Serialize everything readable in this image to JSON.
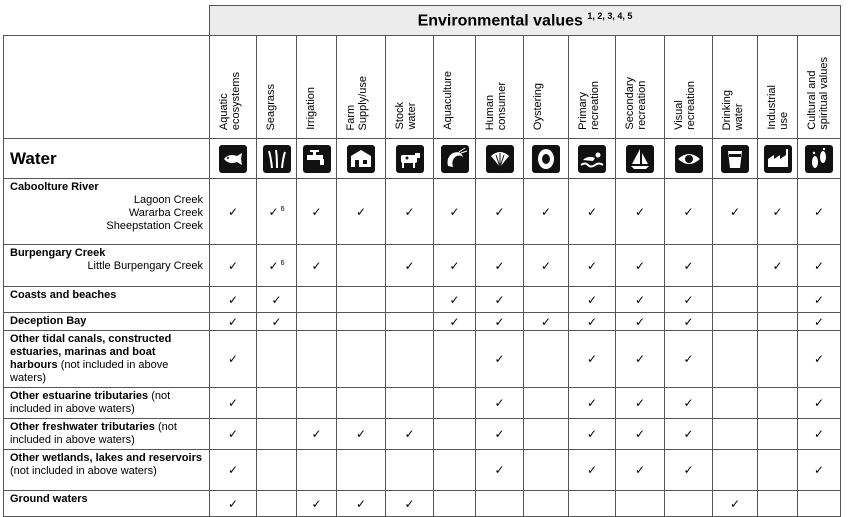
{
  "header": {
    "title": "Environmental values",
    "superscript": "1, 2, 3, 4, 5",
    "water_label": "Water"
  },
  "columns": [
    {
      "label": "Aquatic\necosystems",
      "icon": "fish-icon"
    },
    {
      "label": "Seagrass",
      "icon": "seagrass-icon"
    },
    {
      "label": "Irrigation",
      "icon": "tap-icon"
    },
    {
      "label": "Farm\nSupply/use",
      "icon": "farm-building-icon"
    },
    {
      "label": "Stock\nwater",
      "icon": "cow-icon"
    },
    {
      "label": "Aquaculture",
      "icon": "prawn-icon"
    },
    {
      "label": "Human\nconsumer",
      "icon": "shell-icon"
    },
    {
      "label": "Oystering",
      "icon": "oyster-icon"
    },
    {
      "label": "Primary\nrecreation",
      "icon": "swimmer-icon"
    },
    {
      "label": "Secondary\nrecreation",
      "icon": "sailboat-icon"
    },
    {
      "label": "Visual\nrecreation",
      "icon": "eye-icon"
    },
    {
      "label": "Drinking\nwater",
      "icon": "cup-icon"
    },
    {
      "label": "Industrial\nuse",
      "icon": "factory-icon"
    },
    {
      "label": "Cultural and\nspiritual values",
      "icon": "footprints-icon"
    }
  ],
  "check_mark": "✓",
  "rows": [
    {
      "title": "Caboolture River",
      "note": "",
      "subs": [
        "Lagoon Creek",
        "Wararba Creek",
        "Sheepstation Creek"
      ],
      "cells": [
        "✓",
        "✓ 6",
        "✓",
        "✓",
        "✓",
        "✓",
        "✓",
        "✓",
        "✓",
        "✓",
        "✓",
        "✓",
        "✓",
        "✓"
      ]
    },
    {
      "title": "Burpengary Creek",
      "note": "",
      "subs": [
        "Little Burpengary Creek"
      ],
      "cells": [
        "✓",
        "✓ 6",
        "✓",
        "",
        "✓",
        "✓",
        "✓",
        "✓",
        "✓",
        "✓",
        "✓",
        "",
        "✓",
        "✓"
      ]
    },
    {
      "title": "Coasts and beaches",
      "note": "",
      "subs": [],
      "cells": [
        "✓",
        "✓",
        "",
        "",
        "",
        "✓",
        "✓",
        "",
        "✓",
        "✓",
        "✓",
        "",
        "",
        "✓"
      ]
    },
    {
      "title": "Deception Bay",
      "note": "",
      "subs": [],
      "cells": [
        "✓",
        "✓",
        "",
        "",
        "",
        "✓",
        "✓",
        "✓",
        "✓",
        "✓",
        "✓",
        "",
        "",
        "✓"
      ]
    },
    {
      "title": "Other tidal canals, constructed estuaries, marinas and boat harbours",
      "note": "(not included in above waters)",
      "subs": [],
      "cells": [
        "✓",
        "",
        "",
        "",
        "",
        "",
        "✓",
        "",
        "✓",
        "✓",
        "✓",
        "",
        "",
        "✓"
      ]
    },
    {
      "title": "Other estuarine tributaries",
      "note": "(not included in above waters)",
      "subs": [],
      "cells": [
        "✓",
        "",
        "",
        "",
        "",
        "",
        "✓",
        "",
        "✓",
        "✓",
        "✓",
        "",
        "",
        "✓"
      ]
    },
    {
      "title": "Other freshwater tributaries",
      "note": "(not included in above waters)",
      "subs": [],
      "cells": [
        "✓",
        "",
        "✓",
        "✓",
        "✓",
        "",
        "✓",
        "",
        "✓",
        "✓",
        "✓",
        "",
        "",
        "✓"
      ]
    },
    {
      "title": "Other wetlands, lakes and reservoirs",
      "note": "(not included in above waters)",
      "subs": [],
      "cells": [
        "✓",
        "",
        "",
        "",
        "",
        "",
        "✓",
        "",
        "✓",
        "✓",
        "✓",
        "",
        "",
        "✓"
      ]
    },
    {
      "title": "Ground waters",
      "note": "",
      "subs": [],
      "cells": [
        "✓",
        "",
        "✓",
        "✓",
        "✓",
        "",
        "",
        "",
        "",
        "",
        "",
        "✓",
        "",
        ""
      ]
    }
  ]
}
